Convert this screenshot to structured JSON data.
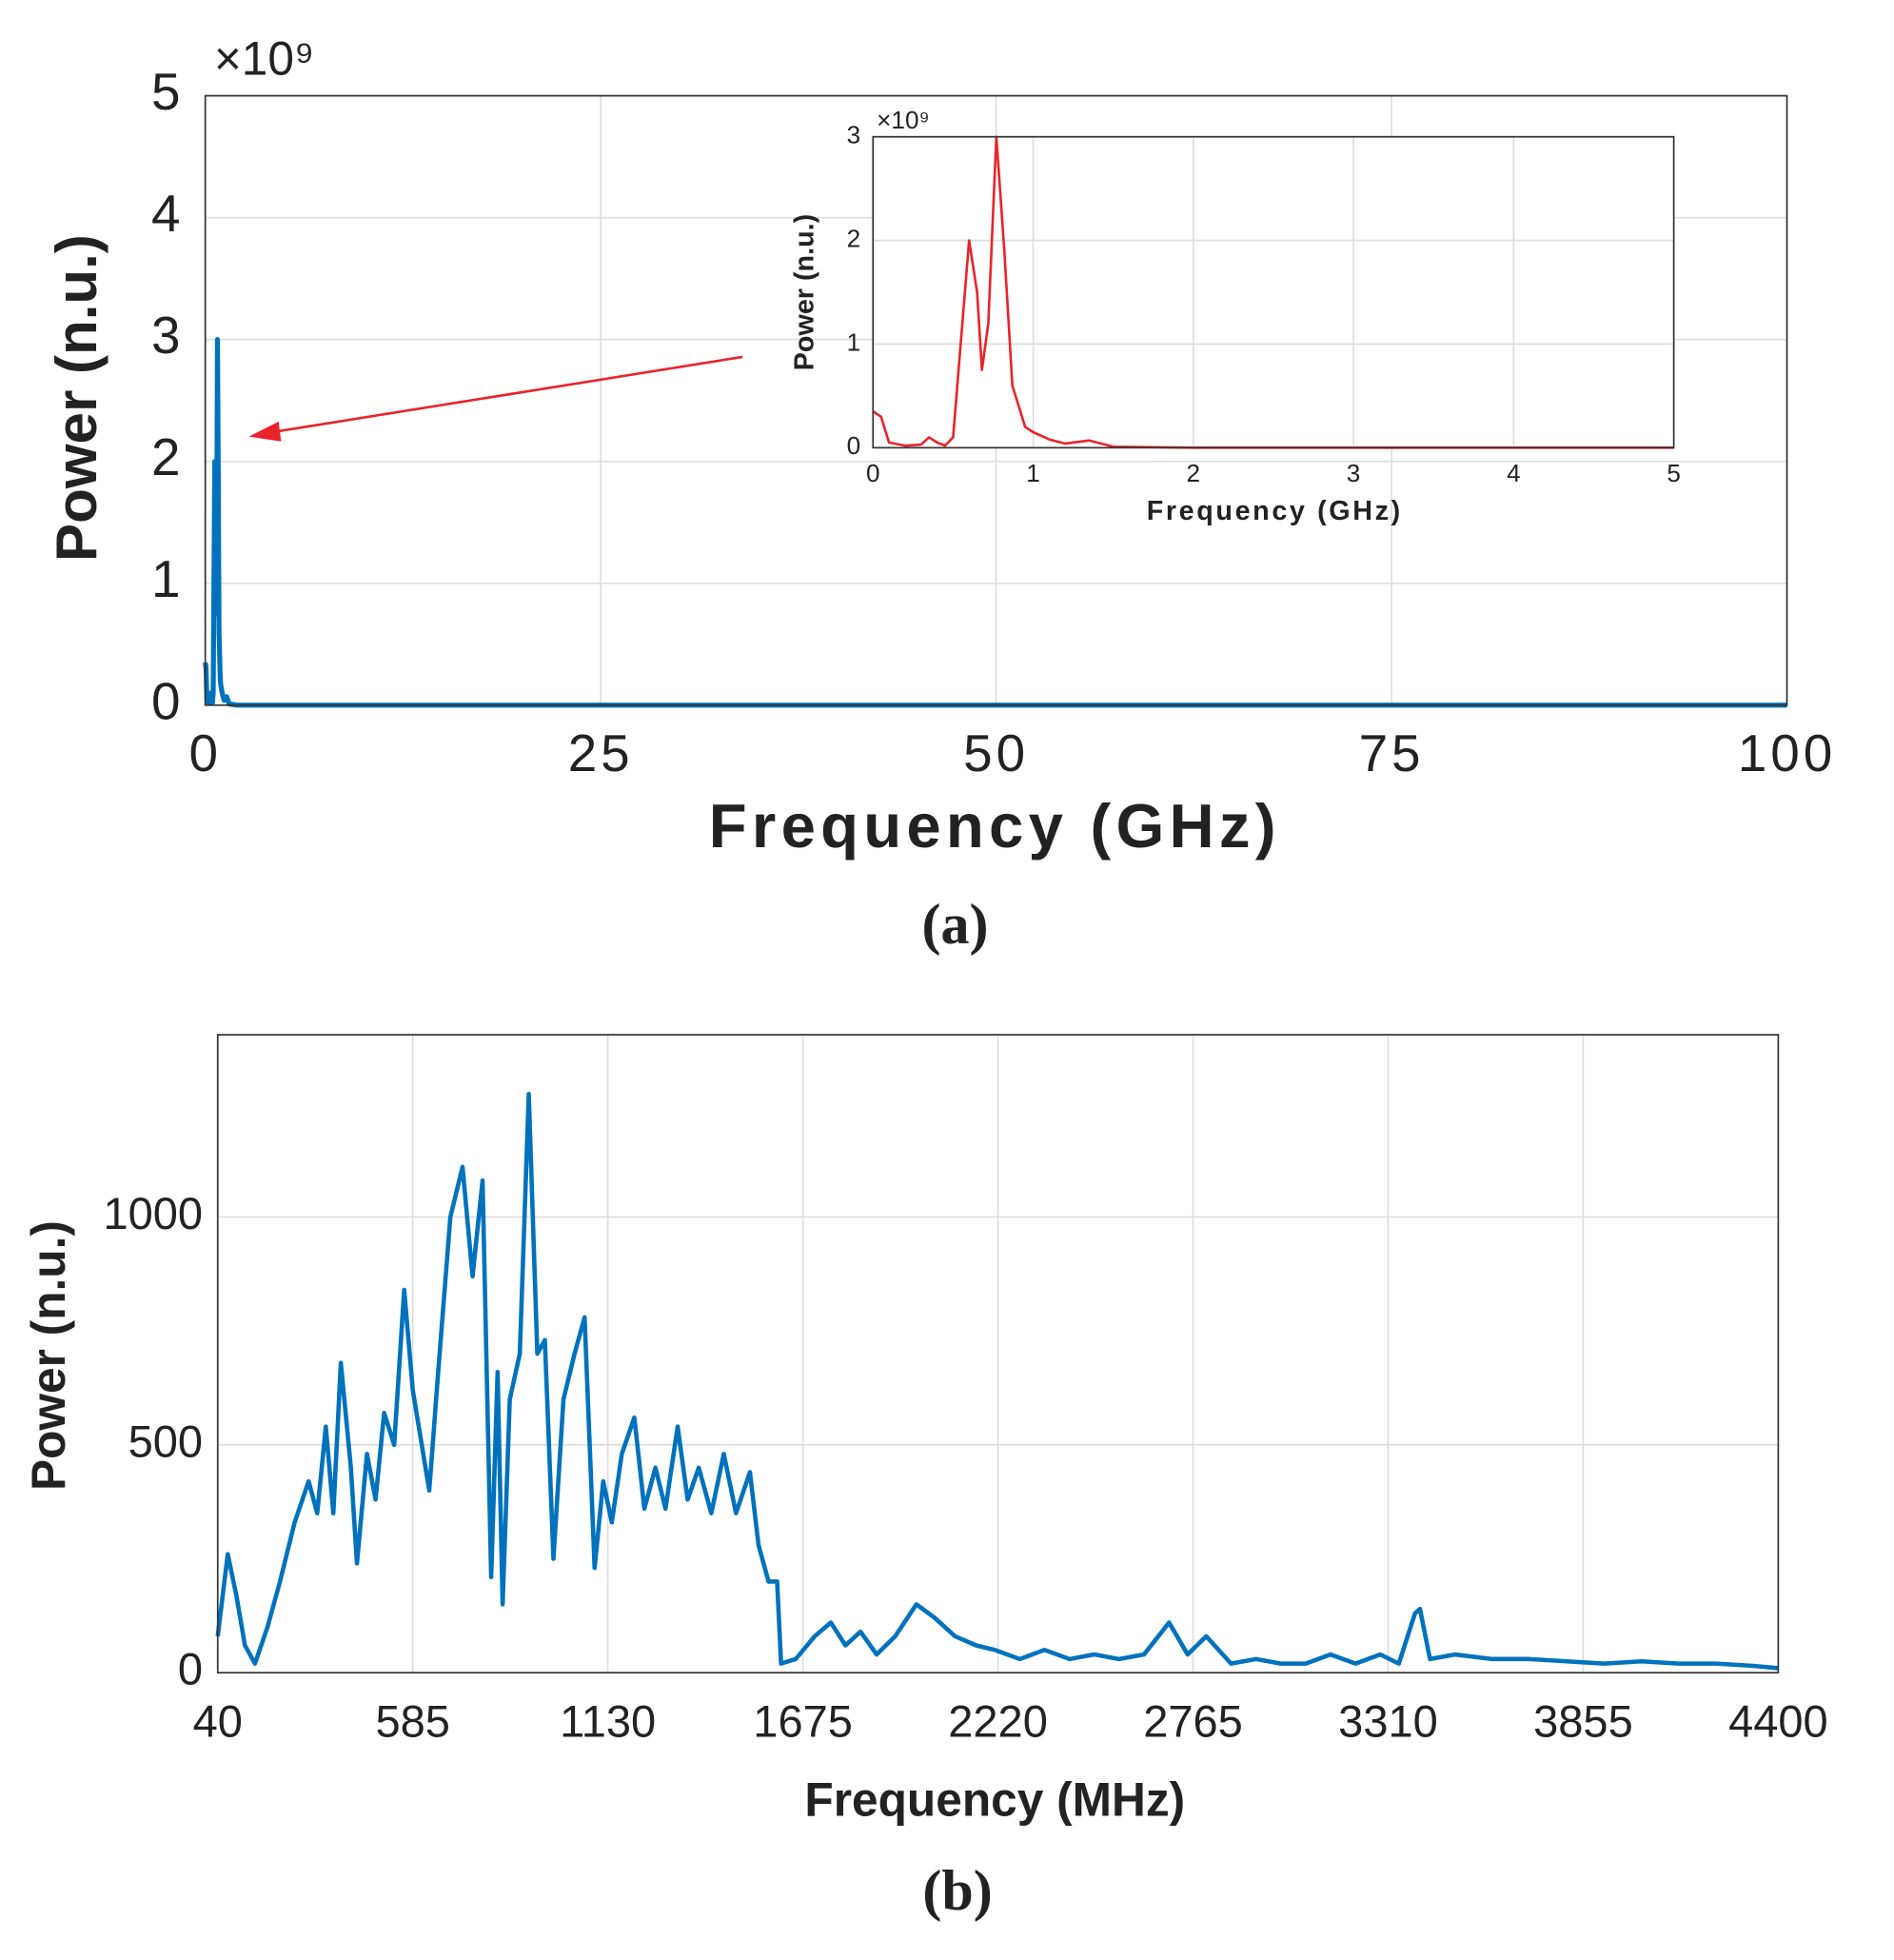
{
  "chart_data": [
    {
      "type": "line",
      "caption": "(a)",
      "x_label": "Frequency (GHz)",
      "y_label": "Power (n.u.)",
      "y_multiplier": "×10⁹",
      "x": [
        0,
        0.05,
        0.1,
        0.2,
        0.3,
        0.35,
        0.4,
        0.45,
        0.5,
        0.6,
        0.65,
        0.68,
        0.72,
        0.77,
        0.82,
        0.87,
        0.95,
        1.0,
        1.1,
        1.2,
        1.35,
        1.5,
        2,
        5,
        100
      ],
      "values": [
        0.35,
        0.3,
        0.05,
        0.02,
        0.03,
        0.1,
        0.05,
        0.02,
        0.1,
        2.0,
        1.5,
        0.75,
        1.2,
        3.0,
        1.9,
        0.6,
        0.2,
        0.15,
        0.08,
        0.04,
        0.07,
        0.01,
        0,
        0,
        0
      ],
      "color": "#0072bd",
      "xlim": [
        0,
        100
      ],
      "xticks": [
        0,
        25,
        50,
        75,
        100
      ],
      "ylim": [
        0,
        5
      ],
      "yticks": [
        0,
        1,
        2,
        3,
        4,
        5
      ],
      "grid": true
    },
    {
      "type": "line",
      "x_label": "Frequency (GHz)",
      "y_label": "Power (n.u.)",
      "y_multiplier": "×10⁹",
      "x": [
        0,
        0.05,
        0.1,
        0.2,
        0.3,
        0.35,
        0.4,
        0.45,
        0.5,
        0.6,
        0.65,
        0.68,
        0.72,
        0.77,
        0.82,
        0.87,
        0.95,
        1.0,
        1.1,
        1.2,
        1.35,
        1.5,
        2,
        5
      ],
      "values": [
        0.35,
        0.3,
        0.05,
        0.02,
        0.03,
        0.1,
        0.05,
        0.02,
        0.1,
        2.0,
        1.5,
        0.75,
        1.2,
        3.0,
        1.9,
        0.6,
        0.2,
        0.15,
        0.08,
        0.04,
        0.07,
        0.01,
        0,
        0
      ],
      "color": "#e8242a",
      "xlim": [
        0,
        5
      ],
      "xticks": [
        0,
        1,
        2,
        3,
        4,
        5
      ],
      "ylim": [
        0,
        3
      ],
      "yticks": [
        0,
        1,
        2,
        3
      ],
      "grid": true
    },
    {
      "type": "line",
      "caption": "(b)",
      "x_label": "Frequency (MHz)",
      "y_label": "Power (n.u.)",
      "x": [
        40,
        68,
        92,
        116,
        144,
        179,
        214,
        255,
        294,
        318,
        342,
        363,
        384,
        412,
        429,
        457,
        481,
        505,
        533,
        561,
        585,
        631,
        655,
        690,
        724,
        752,
        780,
        804,
        822,
        836,
        856,
        884,
        909,
        933,
        954,
        978,
        1006,
        1037,
        1065,
        1093,
        1117,
        1141,
        1169,
        1204,
        1232,
        1263,
        1291,
        1325,
        1353,
        1384,
        1419,
        1454,
        1488,
        1527,
        1551,
        1579,
        1603,
        1614,
        1655,
        1708,
        1753,
        1794,
        1836,
        1881,
        1933,
        1992,
        2044,
        2100,
        2159,
        2211,
        2281,
        2350,
        2420,
        2489,
        2558,
        2628,
        2698,
        2750,
        2802,
        2871,
        2941,
        3010,
        3080,
        3149,
        3219,
        3288,
        3340,
        3385,
        3399,
        3427,
        3497,
        3601,
        3705,
        3809,
        3914,
        4018,
        4122,
        4226,
        4330,
        4400
      ],
      "values": [
        80,
        260,
        170,
        60,
        20,
        100,
        200,
        330,
        420,
        350,
        540,
        350,
        680,
        450,
        240,
        480,
        380,
        570,
        500,
        840,
        620,
        400,
        650,
        1000,
        1110,
        870,
        1080,
        210,
        660,
        150,
        600,
        700,
        1270,
        700,
        730,
        250,
        600,
        700,
        780,
        230,
        420,
        330,
        480,
        560,
        360,
        450,
        360,
        540,
        380,
        450,
        350,
        480,
        350,
        440,
        280,
        200,
        200,
        20,
        30,
        80,
        110,
        60,
        90,
        40,
        80,
        150,
        120,
        80,
        60,
        50,
        30,
        50,
        30,
        40,
        30,
        40,
        110,
        40,
        80,
        20,
        30,
        20,
        20,
        40,
        20,
        40,
        20,
        130,
        140,
        30,
        40,
        30,
        30,
        25,
        20,
        25,
        20,
        20,
        15,
        10
      ],
      "color": "#0072bd",
      "xlim": [
        40,
        4400
      ],
      "xticks": [
        40,
        585,
        1130,
        1675,
        2220,
        2765,
        3310,
        3855,
        4400
      ],
      "ylim": [
        0,
        1400
      ],
      "yticks": [
        0,
        500,
        1000
      ],
      "grid": true
    }
  ]
}
